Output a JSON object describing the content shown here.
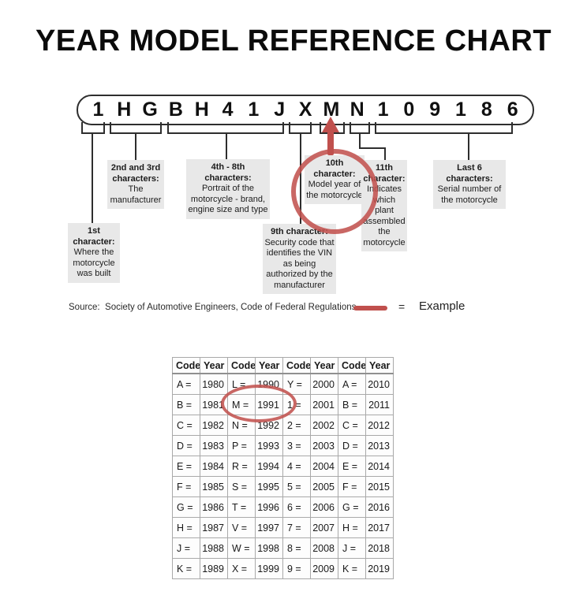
{
  "title": "YEAR MODEL REFERENCE CHART",
  "vin": {
    "string": "1HGBH41JXMN109186",
    "characters": [
      "1",
      "H",
      "G",
      "B",
      "H",
      "4",
      "1",
      "J",
      "X",
      "M",
      "N",
      "1",
      "0",
      "9",
      "1",
      "8",
      "6"
    ]
  },
  "callouts": {
    "c1": {
      "heading": "1st character:",
      "body": "Where the motorcycle was built"
    },
    "c23": {
      "heading": "2nd and 3rd characters:",
      "body": "The manufacturer"
    },
    "c48": {
      "heading": "4th - 8th characters:",
      "body": "Portrait of the motorcycle - brand, engine size and type"
    },
    "c9": {
      "heading": "9th character:",
      "body": "Security code that identifies the VIN as being authorized by the manufacturer"
    },
    "c10": {
      "heading": "10th character:",
      "body": "Model year of the motorcycle"
    },
    "c11": {
      "heading": "11th character:",
      "body": "Indicates which plant assembled the motorcycle"
    },
    "last6": {
      "heading": "Last 6 characters:",
      "body": "Serial number of the motorcycle"
    }
  },
  "source_line": {
    "text": "Source:  Society of Automotive Engineers, Code of Federal Regulations",
    "equals": "=",
    "example_label": "Example"
  },
  "table": {
    "headers": [
      "Code",
      "Year",
      "Code",
      "Year",
      "Code",
      "Year",
      "Code",
      "Year"
    ],
    "rows": [
      [
        "A =",
        "1980",
        "L =",
        "1990",
        "Y =",
        "2000",
        "A =",
        "2010"
      ],
      [
        "B =",
        "1981",
        "M =",
        "1991",
        "1 =",
        "2001",
        "B =",
        "2011"
      ],
      [
        "C =",
        "1982",
        "N =",
        "1992",
        "2 =",
        "2002",
        "C =",
        "2012"
      ],
      [
        "D =",
        "1983",
        "P =",
        "1993",
        "3 =",
        "2003",
        "D =",
        "2013"
      ],
      [
        "E =",
        "1984",
        "R =",
        "1994",
        "4 =",
        "2004",
        "E =",
        "2014"
      ],
      [
        "F =",
        "1985",
        "S =",
        "1995",
        "5 =",
        "2005",
        "F =",
        "2015"
      ],
      [
        "G =",
        "1986",
        "T =",
        "1996",
        "6 =",
        "2006",
        "G =",
        "2016"
      ],
      [
        "H =",
        "1987",
        "V =",
        "1997",
        "7 =",
        "2007",
        "H =",
        "2017"
      ],
      [
        "J =",
        "1988",
        "W =",
        "1998",
        "8 =",
        "2008",
        "J =",
        "2018"
      ],
      [
        "K =",
        "1989",
        "X =",
        "1999",
        "9 =",
        "2009",
        "K =",
        "2019"
      ]
    ],
    "highlighted_example": "M = 1991"
  },
  "colors": {
    "accent_red": "#c0504d",
    "callout_gray": "#e8e8e8",
    "line_dark": "#2e2e2e"
  }
}
